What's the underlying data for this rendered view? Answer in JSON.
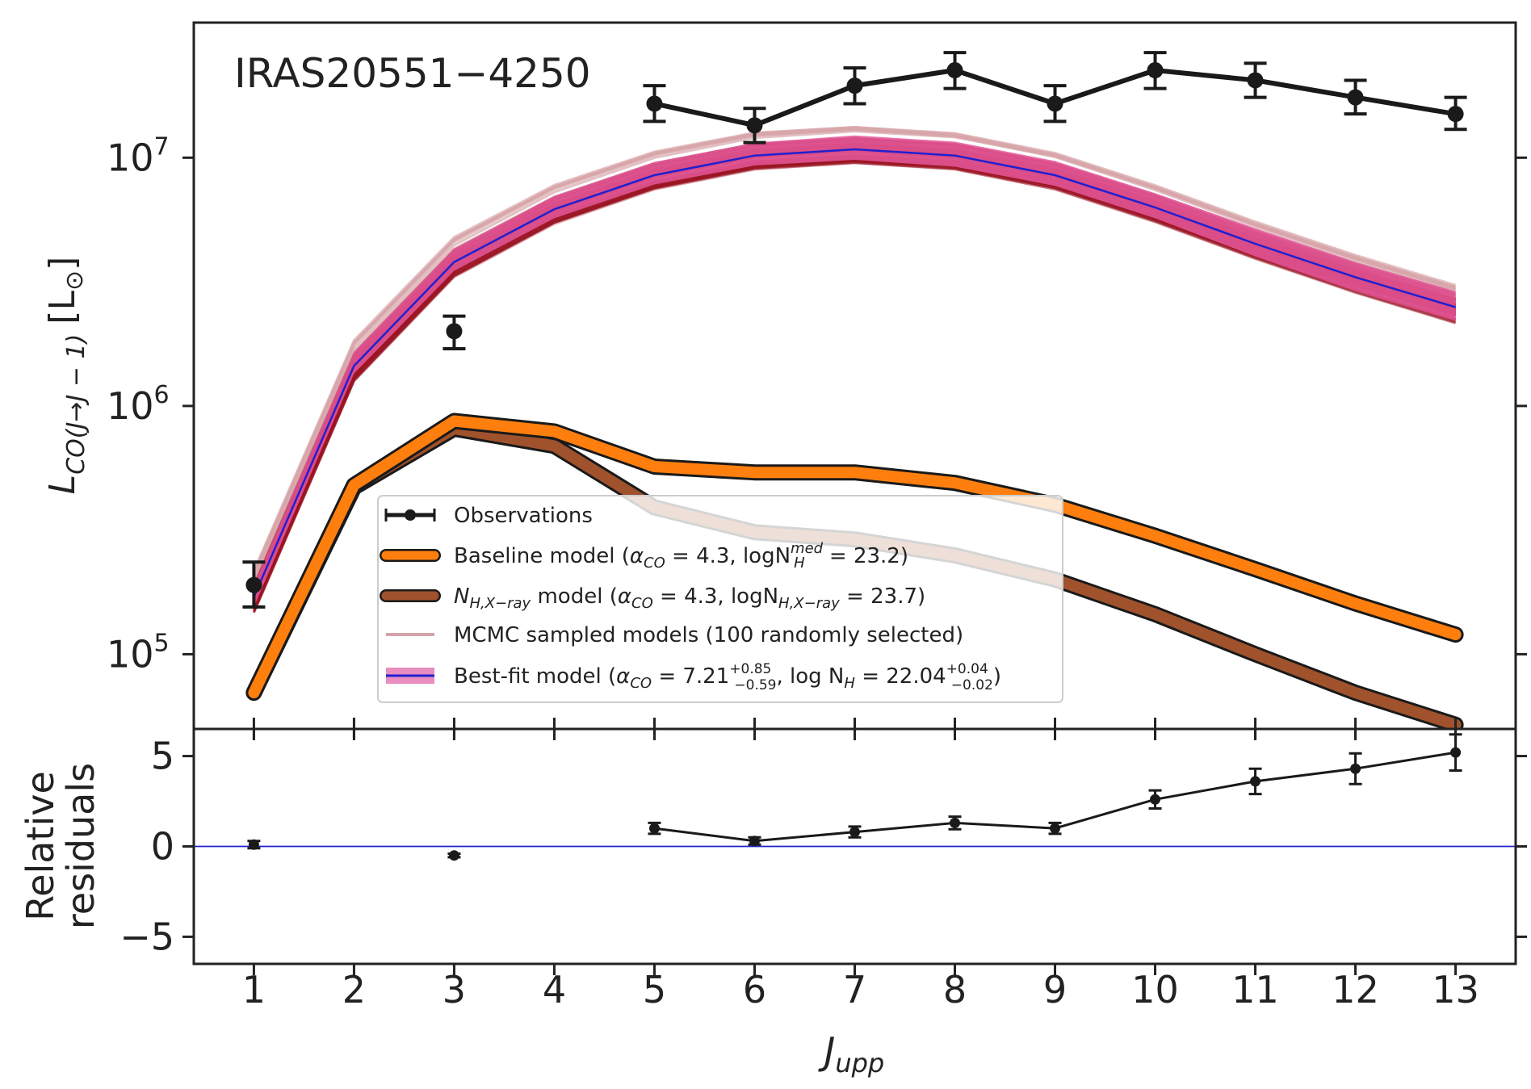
{
  "chart_data": [
    {
      "panel": "main",
      "type": "line",
      "yscale": "log",
      "ylim": [
        50000,
        35000000
      ],
      "xlim": [
        0.4,
        13.6
      ],
      "x_ticks": [
        1,
        2,
        3,
        4,
        5,
        6,
        7,
        8,
        9,
        10,
        11,
        12,
        13
      ],
      "y_ticks": [
        {
          "value": 100000,
          "base": "10",
          "exp": "5"
        },
        {
          "value": 1000000,
          "base": "10",
          "exp": "6"
        },
        {
          "value": 10000000,
          "base": "10",
          "exp": "7"
        }
      ],
      "ylabel": {
        "main": "L",
        "sub": "CO(J→J − 1)",
        "unit_open": "[L",
        "unit_sub": "⊙",
        "unit_close": "]"
      },
      "annotation": "IRAS20551−4250",
      "series": [
        {
          "name": "Observations",
          "kind": "errorbar",
          "color": "#1a1a1a",
          "points": [
            {
              "x": 1,
              "y": 190000,
              "lo": 155000,
              "hi": 235000
            },
            {
              "x": 3,
              "y": 2000000,
              "lo": 1700000,
              "hi": 2300000
            },
            {
              "x": 5,
              "y": 16500000,
              "lo": 14000000,
              "hi": 19500000
            },
            {
              "x": 6,
              "y": 13500000,
              "lo": 11500000,
              "hi": 15800000
            },
            {
              "x": 7,
              "y": 19500000,
              "lo": 16500000,
              "hi": 23000000
            },
            {
              "x": 8,
              "y": 22500000,
              "lo": 19000000,
              "hi": 26500000
            },
            {
              "x": 9,
              "y": 16500000,
              "lo": 14000000,
              "hi": 19500000
            },
            {
              "x": 10,
              "y": 22500000,
              "lo": 19000000,
              "hi": 26500000
            },
            {
              "x": 11,
              "y": 20500000,
              "lo": 17500000,
              "hi": 24000000
            },
            {
              "x": 12,
              "y": 17500000,
              "lo": 15000000,
              "hi": 20500000
            },
            {
              "x": 13,
              "y": 15000000,
              "lo": 13000000,
              "hi": 17500000
            }
          ]
        },
        {
          "name": "Baseline model",
          "kind": "thick-line",
          "color": "#ff7f0e",
          "x": [
            1,
            2,
            3,
            4,
            5,
            6,
            7,
            8,
            9,
            10,
            11,
            12,
            13
          ],
          "y": [
            70000,
            480000,
            870000,
            790000,
            570000,
            540000,
            540000,
            490000,
            400000,
            300000,
            220000,
            160000,
            120000
          ]
        },
        {
          "name": "N_H,X-ray model",
          "kind": "thick-line",
          "color": "#a0522d",
          "x": [
            1,
            2,
            3,
            4,
            5,
            6,
            7,
            8,
            9,
            10,
            11,
            12,
            13
          ],
          "y": [
            70000,
            470000,
            810000,
            690000,
            390000,
            310000,
            290000,
            250000,
            200000,
            145000,
            100000,
            70000,
            52000
          ]
        },
        {
          "name": "Best-fit model",
          "kind": "band",
          "color": "#2020d0",
          "band_color": "#e5579a",
          "x": [
            1,
            2,
            3,
            4,
            5,
            6,
            7,
            8,
            9,
            10,
            11,
            12,
            13
          ],
          "y": [
            170000,
            1450000,
            3800000,
            6200000,
            8500000,
            10200000,
            10800000,
            10200000,
            8500000,
            6300000,
            4500000,
            3300000,
            2500000
          ],
          "y_lo": [
            155000,
            1350000,
            3500000,
            5700000,
            7800000,
            9300000,
            9800000,
            9200000,
            7700000,
            5700000,
            4000000,
            2900000,
            2200000
          ],
          "y_hi": [
            190000,
            1650000,
            4300000,
            7000000,
            9600000,
            11500000,
            12300000,
            11600000,
            9700000,
            7200000,
            5200000,
            3800000,
            2900000
          ]
        }
      ],
      "legend": {
        "placement": "lower-center",
        "entries": [
          {
            "label": "Observations"
          },
          {
            "label": "Baseline model (",
            "math": "α",
            "math_sub": "CO",
            "rest": " = 4.3, logN",
            "rest_sub": "H",
            "rest_sup": "med",
            "tail": " = 23.2)"
          },
          {
            "label_math": "N",
            "label_sub": "H,X−ray",
            "rest": " model (",
            "math": "α",
            "math_sub": "CO",
            "rest2": " = 4.3, logN",
            "rest2_sub": "H,X−ray",
            "tail": " = 23.7)"
          },
          {
            "label": "MCMC sampled models (100 randomly selected)"
          },
          {
            "label": "Best-fit model (",
            "math": "α",
            "math_sub": "CO",
            "val1": " = 7.21",
            "val1_sup": "+0.85",
            "val1_sub": "−0.59",
            "mid": ", log N",
            "mid_sub": "H",
            "val2": " = 22.04",
            "val2_sup": "+0.04",
            "val2_sub": "−0.02",
            "tail": ")"
          }
        ]
      }
    },
    {
      "panel": "residuals",
      "type": "line",
      "ylim": [
        -6.5,
        6.5
      ],
      "y_ticks": [
        5,
        0,
        -5
      ],
      "y_tick_labels": [
        "5",
        "0",
        "−5"
      ],
      "ylabel_line1": "Relative",
      "ylabel_line2": "residuals",
      "xlabel": {
        "main": "J",
        "sub": "upp"
      },
      "x_tick_labels": [
        "1",
        "2",
        "3",
        "4",
        "5",
        "6",
        "7",
        "8",
        "9",
        "10",
        "11",
        "12",
        "13"
      ],
      "zero_line_color": "#2020d0",
      "points": [
        {
          "x": 1,
          "y": 0.1,
          "err": 0.2
        },
        {
          "x": 3,
          "y": -0.5,
          "err": 0.1
        },
        {
          "x": 5,
          "y": 1.0,
          "err": 0.3
        },
        {
          "x": 6,
          "y": 0.3,
          "err": 0.2
        },
        {
          "x": 7,
          "y": 0.8,
          "err": 0.3
        },
        {
          "x": 8,
          "y": 1.3,
          "err": 0.35
        },
        {
          "x": 9,
          "y": 1.0,
          "err": 0.3
        },
        {
          "x": 10,
          "y": 2.6,
          "err": 0.5
        },
        {
          "x": 11,
          "y": 3.6,
          "err": 0.7
        },
        {
          "x": 12,
          "y": 4.3,
          "err": 0.85
        },
        {
          "x": 13,
          "y": 5.2,
          "err": 1.0
        }
      ],
      "connect_from_x": 5
    }
  ]
}
